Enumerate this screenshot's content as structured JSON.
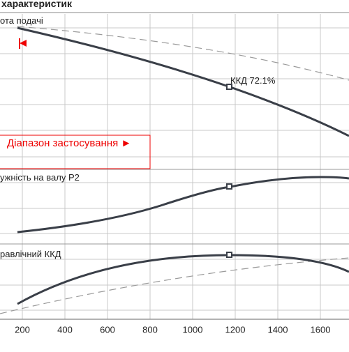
{
  "header": {
    "title": "характеристик"
  },
  "panels": [
    {
      "label": "ота подачі",
      "annotation": "ККД  72.1%",
      "range_label": "Діапазон застосування ►"
    },
    {
      "label": "ужність на валу  P2"
    },
    {
      "label": "равлічний ККД"
    }
  ],
  "x_axis": {
    "ticks": [
      "200",
      "400",
      "600",
      "800",
      "1000",
      "1200",
      "1400",
      "1600"
    ]
  }
}
